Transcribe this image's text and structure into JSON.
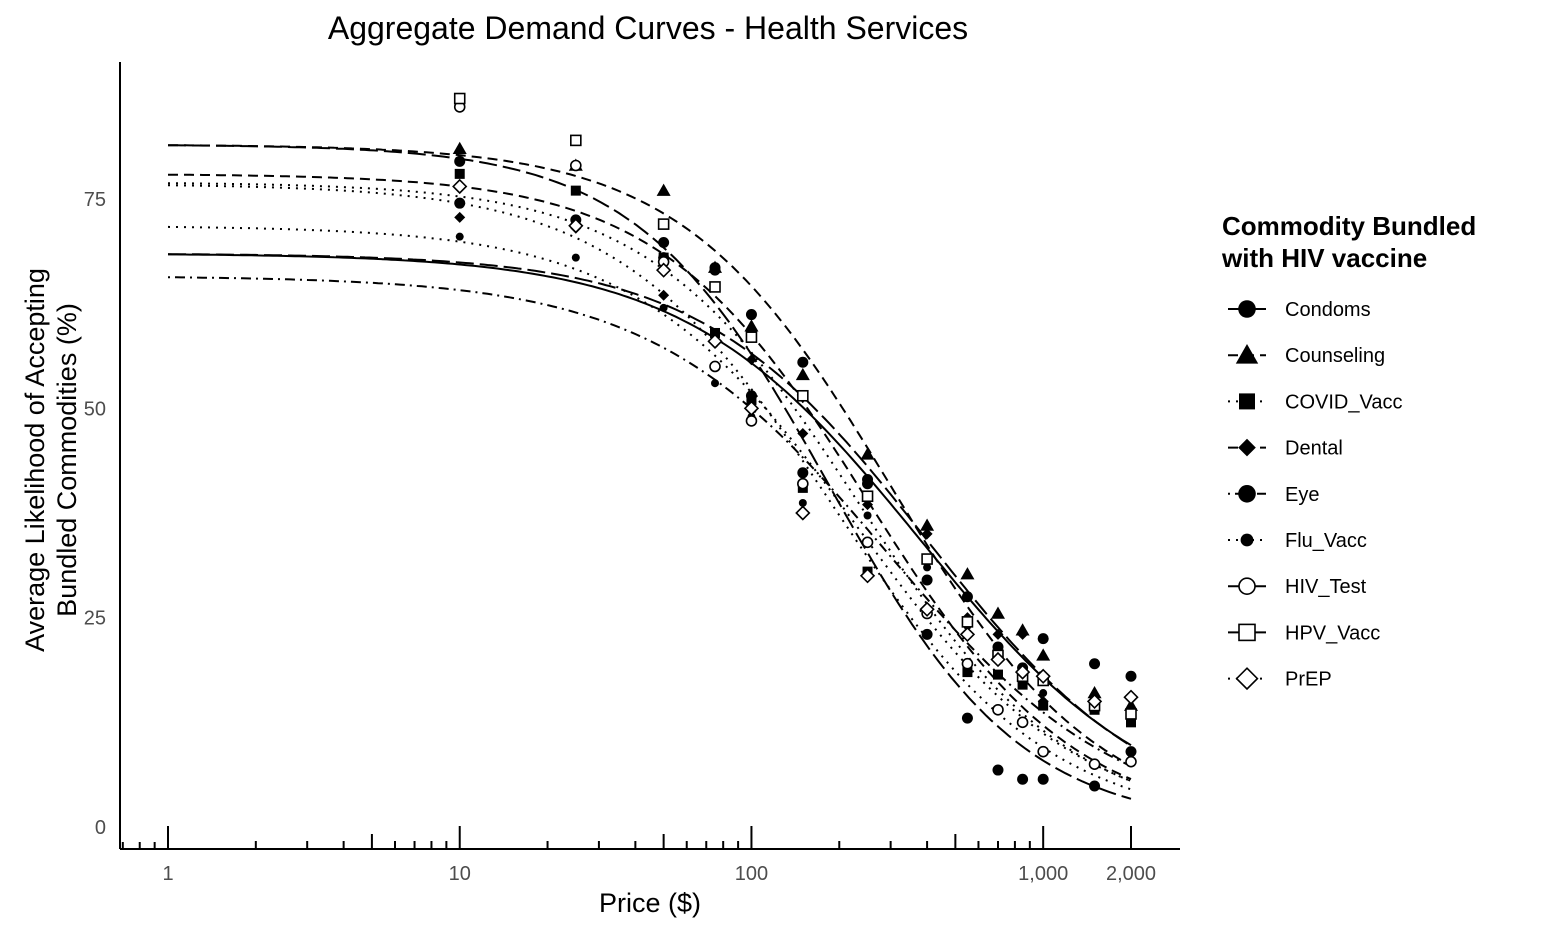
{
  "chart_data": {
    "type": "scatter",
    "title": "Aggregate Demand Curves - Health Services",
    "xlabel": "Price ($)",
    "ylabel_lines": [
      "Average Likelihood of Accepting",
      "Bundled Commodities (%)"
    ],
    "x_scale": "log",
    "xlim": [
      1,
      2000
    ],
    "ylim": [
      0,
      90
    ],
    "x_ticks": [
      1,
      10,
      100,
      1000,
      2000
    ],
    "x_tick_labels": [
      "1",
      "10",
      "100",
      "1,000",
      "2,000"
    ],
    "y_ticks": [
      0,
      25,
      50,
      75
    ],
    "y_tick_labels": [
      "0",
      "25",
      "50",
      "75"
    ],
    "grid": false,
    "legend": {
      "title_lines": [
        "Commodity Bundled",
        "with HIV vaccine"
      ],
      "position": "right"
    },
    "prices": [
      10,
      25,
      50,
      75,
      100,
      150,
      250,
      400,
      550,
      700,
      850,
      1000,
      1500,
      2000
    ],
    "series": [
      {
        "name": "Condoms",
        "marker": "circle-filled",
        "line": "longdash",
        "values": [
          74.5,
          72.5,
          69.8,
          66.8,
          61.2,
          55.5,
          41.5,
          23.0,
          13.0,
          6.8,
          5.7,
          5.7,
          4.9,
          9.0
        ],
        "fit": {
          "top": 81.5,
          "p50": 185,
          "slope": 1.32
        }
      },
      {
        "name": "Counseling",
        "marker": "triangle-filled",
        "line": "dashed",
        "values": [
          81.0,
          79.0,
          76.0,
          66.8,
          59.8,
          54.0,
          44.5,
          36.0,
          30.2,
          25.5,
          23.5,
          20.5,
          16.0,
          14.5
        ],
        "fit": {
          "top": 81.5,
          "p50": 300,
          "slope": 1.22
        }
      },
      {
        "name": "COVID_Vacc",
        "marker": "square-filled",
        "line": "dotted",
        "values": [
          78.0,
          76.0,
          68.0,
          59.0,
          51.0,
          40.5,
          30.5,
          32.0,
          18.5,
          18.2,
          17.0,
          14.5,
          14.0,
          12.5
        ],
        "fit": {
          "top": 76.8,
          "p50": 190,
          "slope": 1.18
        }
      },
      {
        "name": "Dental",
        "marker": "diamond-filled",
        "line": "dashed",
        "values": [
          72.8,
          71.5,
          63.5,
          58.0,
          55.8,
          47.0,
          38.5,
          35.0,
          25.0,
          23.0,
          23.0,
          15.0,
          15.5,
          13.0
        ],
        "fit": {
          "top": 78.0,
          "p50": 250,
          "slope": 1.22
        }
      },
      {
        "name": "Eye",
        "marker": "circle-filled",
        "line": "dotdash",
        "values": [
          79.5,
          79.0,
          68.0,
          66.5,
          51.5,
          42.3,
          41.0,
          29.5,
          27.5,
          21.5,
          19.0,
          22.5,
          19.5,
          18.0
        ],
        "fit": {
          "top": 65.8,
          "p50": 290,
          "slope": 1.08
        }
      },
      {
        "name": "Flu_Vacc",
        "marker": "dot-filled",
        "line": "dotted",
        "values": [
          70.5,
          68.0,
          62.0,
          53.0,
          49.0,
          38.7,
          37.2,
          31.0,
          24.0,
          20.5,
          18.0,
          16.0,
          14.0,
          13.0
        ],
        "fit": {
          "top": 71.8,
          "p50": 230,
          "slope": 1.15
        }
      },
      {
        "name": "HIV_Test",
        "marker": "circle-open",
        "line": "solid",
        "values": [
          86.0,
          79.0,
          67.5,
          55.0,
          48.5,
          41.0,
          34.0,
          25.5,
          19.5,
          14.0,
          12.5,
          9.0,
          7.5,
          7.8
        ],
        "fit": {
          "top": 68.5,
          "p50": 380,
          "slope": 1.08
        }
      },
      {
        "name": "HPV_Vacc",
        "marker": "square-open",
        "line": "longdash",
        "values": [
          87.0,
          82.0,
          72.0,
          64.5,
          58.5,
          51.5,
          39.5,
          32.0,
          24.5,
          20.5,
          18.0,
          17.5,
          14.5,
          13.5
        ],
        "fit": {
          "top": 68.5,
          "p50": 400,
          "slope": 1.12
        }
      },
      {
        "name": "PrEP",
        "marker": "diamond-open",
        "line": "dotted",
        "values": [
          76.5,
          71.8,
          66.5,
          58.0,
          50.0,
          37.5,
          30.0,
          26.0,
          23.0,
          20.0,
          18.5,
          18.0,
          15.0,
          15.5
        ],
        "fit": {
          "top": 77.0,
          "p50": 235,
          "slope": 1.2
        }
      }
    ]
  }
}
